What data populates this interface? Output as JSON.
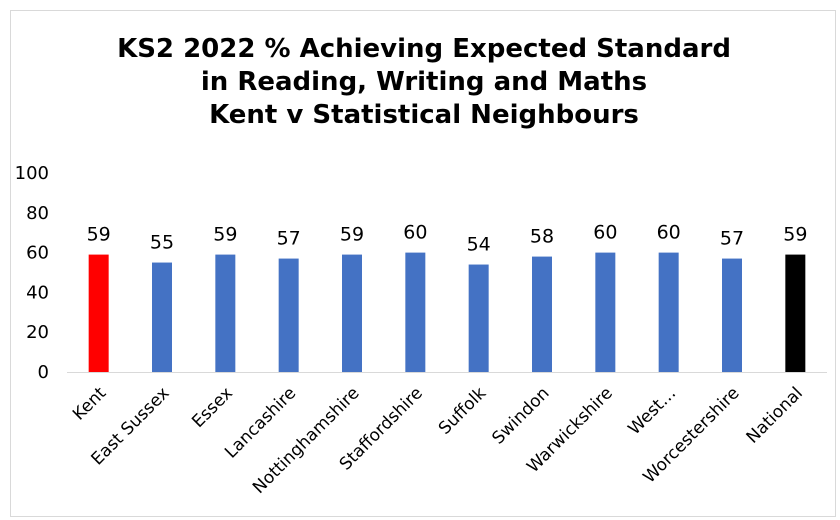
{
  "chart_data": {
    "type": "bar",
    "title_lines": [
      "KS2 2022 % Achieving Expected Standard",
      "in Reading, Writing and Maths",
      "Kent v Statistical Neighbours"
    ],
    "categories": [
      "Kent",
      "East Sussex",
      "Essex",
      "Lancashire",
      "Nottinghamshire",
      "Staffordshire",
      "Suffolk",
      "Swindon",
      "Warwickshire",
      "West…",
      "Worcestershire",
      "National"
    ],
    "values": [
      59,
      55,
      59,
      57,
      59,
      60,
      54,
      58,
      60,
      60,
      57,
      59
    ],
    "data_labels": [
      "59",
      "55",
      "59",
      "57",
      "59",
      "60",
      "54",
      "58",
      "60",
      "60",
      "57",
      "59"
    ],
    "ylim": [
      0,
      100
    ],
    "yticks": [
      "0",
      "20",
      "40",
      "60",
      "80",
      "100"
    ],
    "grid": false,
    "legend": "none",
    "colors": {
      "default": "#4472C4",
      "Kent": "#FF0000",
      "National": "#000000"
    }
  }
}
